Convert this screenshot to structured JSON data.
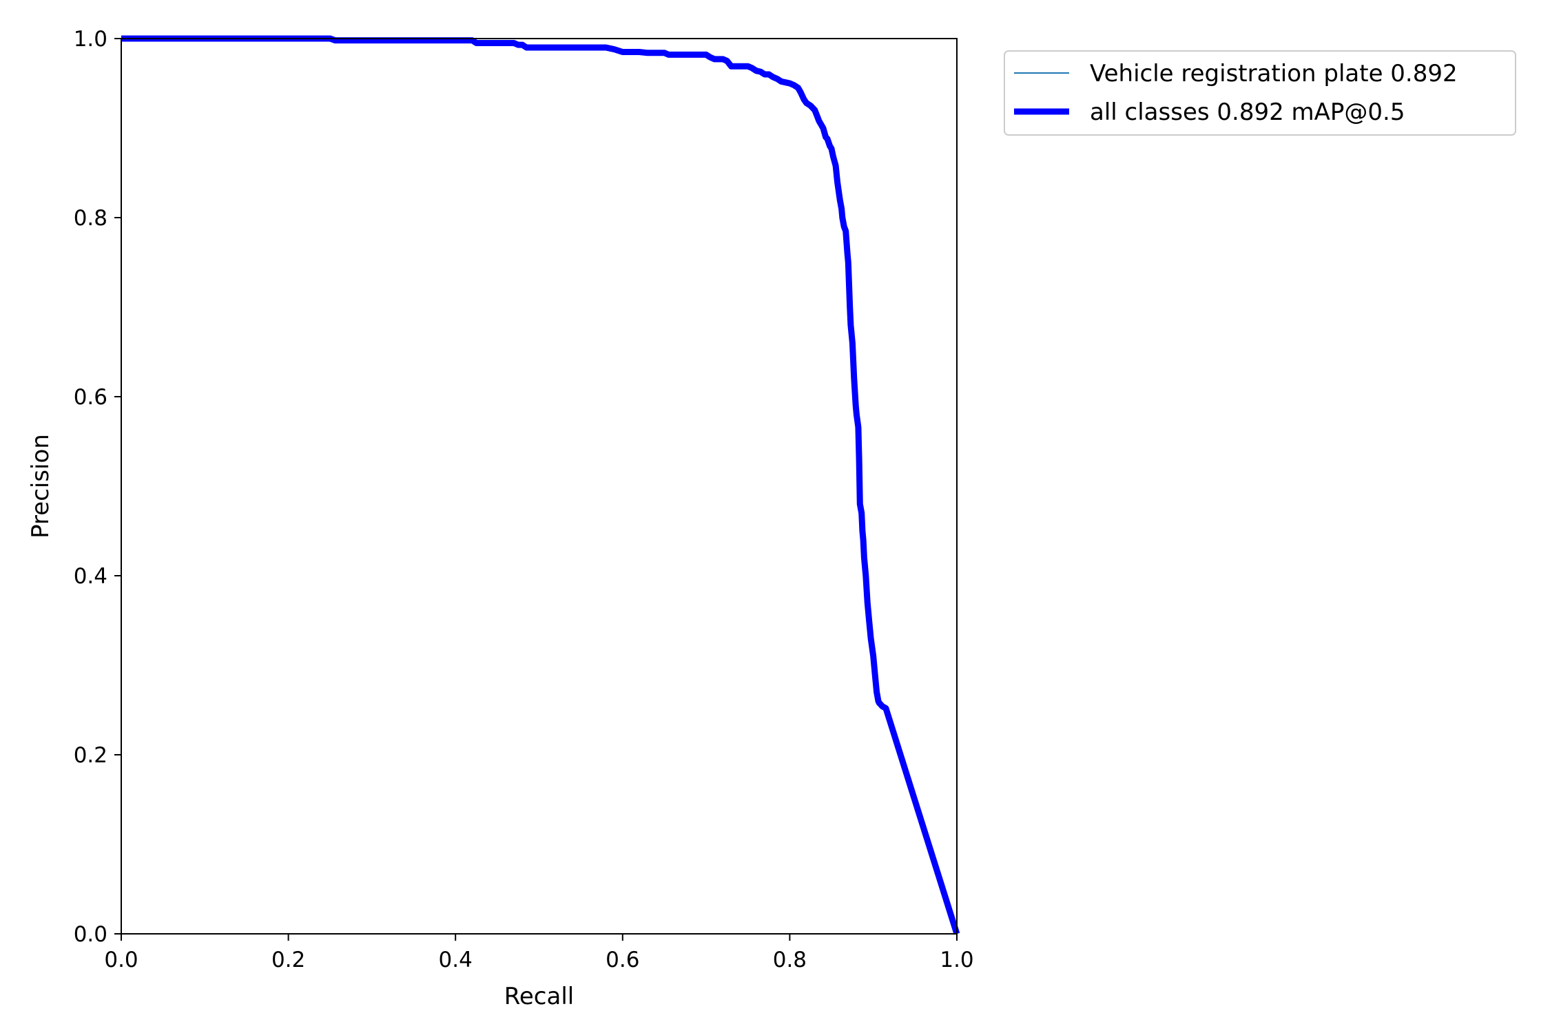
{
  "chart_data": {
    "type": "line",
    "xlabel": "Recall",
    "ylabel": "Precision",
    "xlim": [
      0.0,
      1.0
    ],
    "ylim": [
      0.0,
      1.0
    ],
    "xticks": [
      "0.0",
      "0.2",
      "0.4",
      "0.6",
      "0.8",
      "1.0"
    ],
    "yticks": [
      "0.0",
      "0.2",
      "0.4",
      "0.6",
      "0.8",
      "1.0"
    ],
    "grid": false,
    "legend_position": "outside-top-right",
    "series": [
      {
        "name": "Vehicle registration plate 0.892",
        "color": "#1f77b4",
        "style": "thin",
        "x": [
          0.0,
          0.1,
          0.2,
          0.25,
          0.256,
          0.3,
          0.35,
          0.4,
          0.42,
          0.425,
          0.47,
          0.475,
          0.48,
          0.485,
          0.5,
          0.55,
          0.58,
          0.59,
          0.6,
          0.62,
          0.63,
          0.65,
          0.655,
          0.7,
          0.705,
          0.71,
          0.72,
          0.725,
          0.73,
          0.74,
          0.75,
          0.755,
          0.76,
          0.765,
          0.77,
          0.775,
          0.78,
          0.785,
          0.79,
          0.795,
          0.8,
          0.805,
          0.81,
          0.813,
          0.817,
          0.82,
          0.825,
          0.83,
          0.833,
          0.835,
          0.84,
          0.843,
          0.845,
          0.848,
          0.85,
          0.852,
          0.855,
          0.857,
          0.86,
          0.862,
          0.863,
          0.865,
          0.867,
          0.869,
          0.87,
          0.872,
          0.873,
          0.875,
          0.877,
          0.879,
          0.88,
          0.882,
          0.883,
          0.884,
          0.886,
          0.887,
          0.888,
          0.889,
          0.891,
          0.893,
          0.895,
          0.897,
          0.9,
          0.902,
          0.904,
          0.906,
          0.907,
          0.909,
          0.91,
          0.911,
          0.913,
          0.915,
          1.0
        ],
        "y": [
          1.0,
          1.0,
          1.0,
          1.0,
          0.998,
          0.998,
          0.998,
          0.998,
          0.998,
          0.995,
          0.995,
          0.993,
          0.993,
          0.99,
          0.99,
          0.99,
          0.99,
          0.988,
          0.985,
          0.985,
          0.984,
          0.984,
          0.982,
          0.982,
          0.979,
          0.977,
          0.977,
          0.975,
          0.969,
          0.969,
          0.969,
          0.967,
          0.964,
          0.963,
          0.96,
          0.96,
          0.957,
          0.955,
          0.952,
          0.951,
          0.95,
          0.948,
          0.945,
          0.94,
          0.932,
          0.928,
          0.925,
          0.92,
          0.913,
          0.908,
          0.9,
          0.89,
          0.888,
          0.88,
          0.877,
          0.868,
          0.858,
          0.84,
          0.82,
          0.81,
          0.8,
          0.79,
          0.785,
          0.76,
          0.75,
          0.7,
          0.68,
          0.66,
          0.62,
          0.59,
          0.58,
          0.566,
          0.53,
          0.48,
          0.47,
          0.45,
          0.44,
          0.42,
          0.4,
          0.37,
          0.35,
          0.33,
          0.31,
          0.29,
          0.27,
          0.26,
          0.258,
          0.256,
          0.255,
          0.254,
          0.253,
          0.252,
          0.0
        ]
      },
      {
        "name": "all classes 0.892 mAP@0.5",
        "color": "#0000ff",
        "style": "thick",
        "same_as": "Vehicle registration plate 0.892"
      }
    ]
  }
}
